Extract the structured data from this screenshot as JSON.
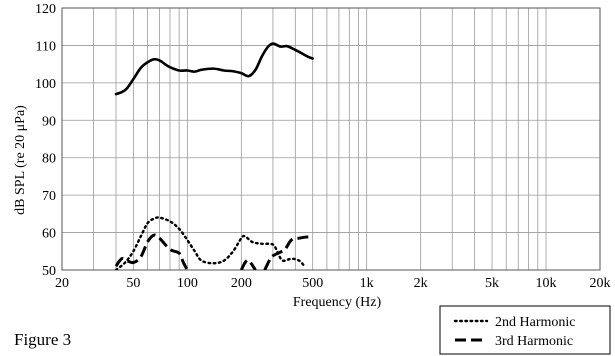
{
  "figure_caption": "Figure 3",
  "chart_data": {
    "type": "line",
    "xlabel": "Frequency (Hz)",
    "ylabel": "dB SPL (re 20 μPa)",
    "x_scale": "log",
    "xlim": [
      20,
      20000
    ],
    "ylim": [
      50,
      120
    ],
    "grid": true,
    "legend_position": "bottom-right",
    "x_tick_values": [
      20,
      50,
      100,
      200,
      500,
      1000,
      2000,
      5000,
      10000,
      20000
    ],
    "x_tick_labels": [
      "20",
      "50",
      "100",
      "200",
      "500",
      "1k",
      "2k",
      "5k",
      "10k",
      "20k"
    ],
    "y_tick_values": [
      50,
      60,
      70,
      80,
      90,
      100,
      110,
      120
    ],
    "y_tick_labels": [
      "50",
      "60",
      "70",
      "80",
      "90",
      "100",
      "110",
      "120"
    ],
    "series": [
      {
        "style": "solid",
        "x": [
          40,
          43,
          46,
          50,
          55,
          60,
          65,
          70,
          75,
          80,
          90,
          100,
          110,
          120,
          140,
          160,
          180,
          200,
          220,
          240,
          260,
          280,
          300,
          330,
          360,
          400,
          430,
          470,
          500
        ],
        "y": [
          97,
          97.5,
          98.5,
          101,
          104,
          105.5,
          106.3,
          106,
          105,
          104.2,
          103.3,
          103.3,
          103,
          103.5,
          103.8,
          103.3,
          103.1,
          102.6,
          101.8,
          103.5,
          107,
          109.5,
          110.5,
          109.7,
          109.8,
          108.8,
          108,
          107,
          106.5
        ]
      },
      {
        "name": "2nd Harmonic",
        "style": "dotted",
        "x": [
          40,
          45,
          50,
          55,
          60,
          65,
          70,
          80,
          90,
          100,
          110,
          120,
          140,
          160,
          180,
          200,
          210,
          230,
          260,
          300,
          320,
          340,
          380,
          420,
          450
        ],
        "y": [
          50,
          52,
          55,
          59,
          62.5,
          63.7,
          64,
          63,
          61,
          58,
          55,
          52.5,
          51.8,
          52.5,
          55,
          58.5,
          59,
          57.5,
          57,
          56.8,
          54.5,
          52.5,
          53,
          52.5,
          51
        ]
      },
      {
        "name": "3rd Harmonic",
        "style": "dashed",
        "segments": [
          {
            "x": [
              40,
              43,
              46,
              50,
              55,
              60,
              65,
              70,
              80,
              90,
              95,
              100
            ],
            "y": [
              51,
              53,
              52.5,
              52,
              53.5,
              57.5,
              59.3,
              58.5,
              55.5,
              54.5,
              52,
              50
            ]
          },
          {
            "x": [
              200,
              210,
              220,
              240
            ],
            "y": [
              50,
              52,
              52.5,
              50
            ]
          },
          {
            "x": [
              270,
              290,
              300,
              320,
              350,
              380,
              420,
              460,
              500
            ],
            "y": [
              50,
              53,
              53.8,
              54.5,
              55.5,
              58,
              58.5,
              58.8,
              58.8
            ]
          }
        ]
      }
    ]
  }
}
